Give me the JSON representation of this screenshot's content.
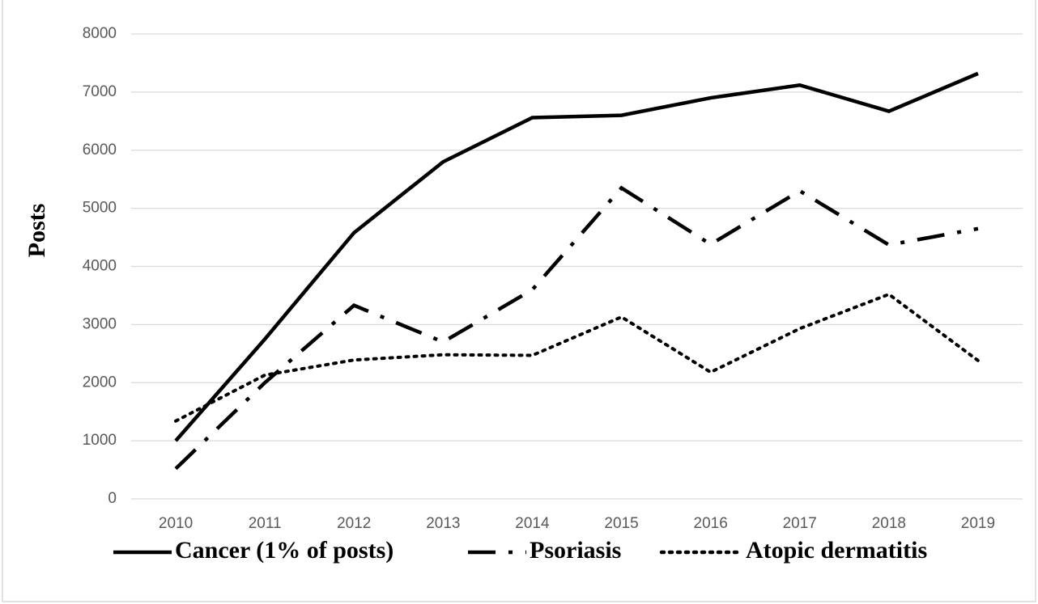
{
  "chart_data": {
    "type": "line",
    "y_label": "Posts",
    "x": [
      "2010",
      "2011",
      "2012",
      "2013",
      "2014",
      "2015",
      "2016",
      "2017",
      "2018",
      "2019"
    ],
    "series": [
      {
        "name": "Cancer (1% of posts)",
        "color": "#000000",
        "style": "solid",
        "values": [
          1000,
          2750,
          4580,
          5800,
          6560,
          6600,
          6900,
          7120,
          6670,
          7320
        ]
      },
      {
        "name": "Psoriasis",
        "color": "#000000",
        "style": "dashdot",
        "values": [
          520,
          2000,
          3330,
          2700,
          3600,
          5350,
          4380,
          5300,
          4370,
          4650
        ]
      },
      {
        "name": "Atopic dermatitis",
        "color": "#000000",
        "style": "dotted",
        "values": [
          1340,
          2130,
          2390,
          2480,
          2470,
          3130,
          2180,
          2930,
          3520,
          2380
        ]
      }
    ],
    "ylim": [
      0,
      8000
    ],
    "yticks": [
      0,
      1000,
      2000,
      3000,
      4000,
      5000,
      6000,
      7000,
      8000
    ],
    "grid": true,
    "legend": "bottom"
  }
}
